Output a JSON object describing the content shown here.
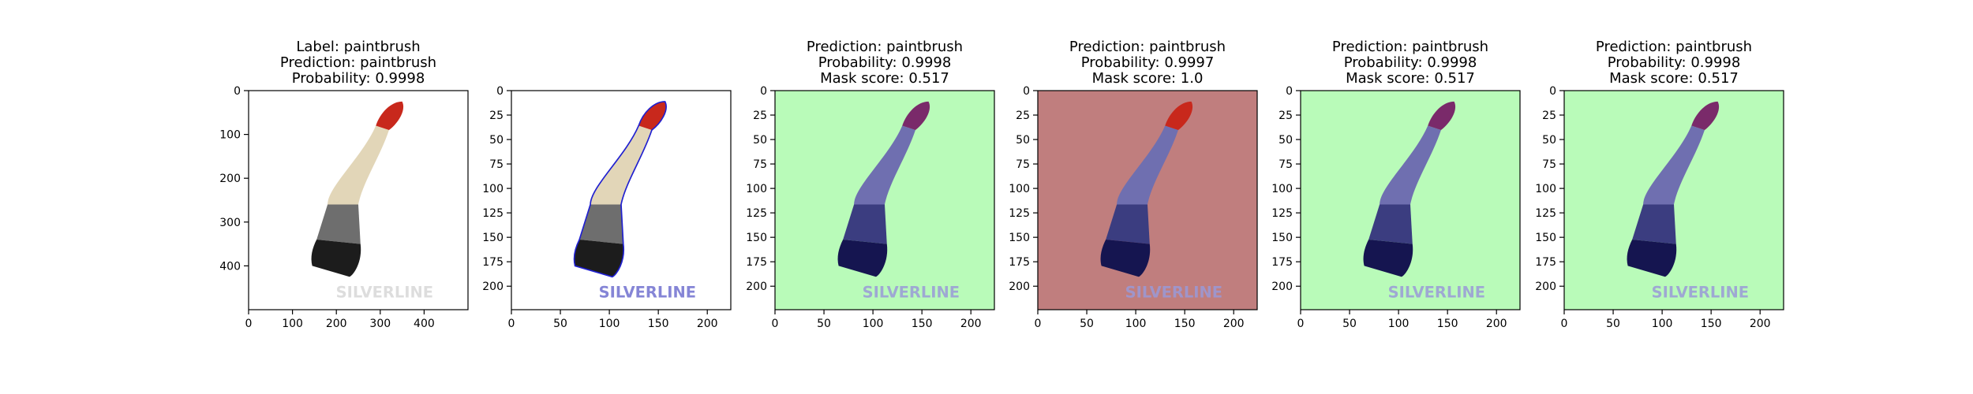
{
  "panels": [
    {
      "title_lines": [
        "Label: paintbrush",
        "Prediction: paintbrush",
        "Probability: 0.9998"
      ],
      "background": "#ffffff",
      "overlay": "none",
      "x_ticks": [
        "0",
        "100",
        "200",
        "300",
        "400"
      ],
      "y_ticks": [
        "0",
        "100",
        "200",
        "300",
        "400"
      ],
      "axis_max": 500,
      "watermark_text": "SILVERLINE"
    },
    {
      "title_lines": [],
      "background": "#ffffff",
      "overlay": "outline",
      "x_ticks": [
        "0",
        "50",
        "100",
        "150",
        "200"
      ],
      "y_ticks": [
        "0",
        "25",
        "50",
        "75",
        "100",
        "125",
        "150",
        "175",
        "200"
      ],
      "axis_max": 224,
      "watermark_text": "SILVERLINE"
    },
    {
      "title_lines": [
        "Prediction: paintbrush",
        "Probability: 0.9998",
        "Mask score: 0.517"
      ],
      "background": "#b9fbb9",
      "overlay": "blue-mask",
      "x_ticks": [
        "0",
        "50",
        "100",
        "150",
        "200"
      ],
      "y_ticks": [
        "0",
        "25",
        "50",
        "75",
        "100",
        "125",
        "150",
        "175",
        "200"
      ],
      "axis_max": 224,
      "watermark_text": "SILVERLINE"
    },
    {
      "title_lines": [
        "Prediction: paintbrush",
        "Probability: 0.9997",
        "Mask score: 1.0"
      ],
      "background": "#c07e7e",
      "overlay": "blue-mask-red-tip",
      "x_ticks": [
        "0",
        "50",
        "100",
        "150",
        "200"
      ],
      "y_ticks": [
        "0",
        "25",
        "50",
        "75",
        "100",
        "125",
        "150",
        "175",
        "200"
      ],
      "axis_max": 224,
      "watermark_text": "SILVERLINE"
    },
    {
      "title_lines": [
        "Prediction: paintbrush",
        "Probability: 0.9998",
        "Mask score: 0.517"
      ],
      "background": "#b9fbb9",
      "overlay": "blue-mask",
      "x_ticks": [
        "0",
        "50",
        "100",
        "150",
        "200"
      ],
      "y_ticks": [
        "0",
        "25",
        "50",
        "75",
        "100",
        "125",
        "150",
        "175",
        "200"
      ],
      "axis_max": 224,
      "watermark_text": "SILVERLINE"
    },
    {
      "title_lines": [
        "Prediction: paintbrush",
        "Probability: 0.9998",
        "Mask score: 0.517"
      ],
      "background": "#b9fbb9",
      "overlay": "blue-mask",
      "x_ticks": [
        "0",
        "50",
        "100",
        "150",
        "200"
      ],
      "y_ticks": [
        "0",
        "25",
        "50",
        "75",
        "100",
        "125",
        "150",
        "175",
        "200"
      ],
      "axis_max": 224,
      "watermark_text": "SILVERLINE"
    }
  ],
  "colors": {
    "brush_tip_red": "#c8281c",
    "brush_handle": "#e2d6b8",
    "brush_ferrule": "#6e6e6e",
    "brush_bristles": "#1c1c1c",
    "mask_blue": "#2d2f8a",
    "outline_blue": "#2020d0"
  }
}
